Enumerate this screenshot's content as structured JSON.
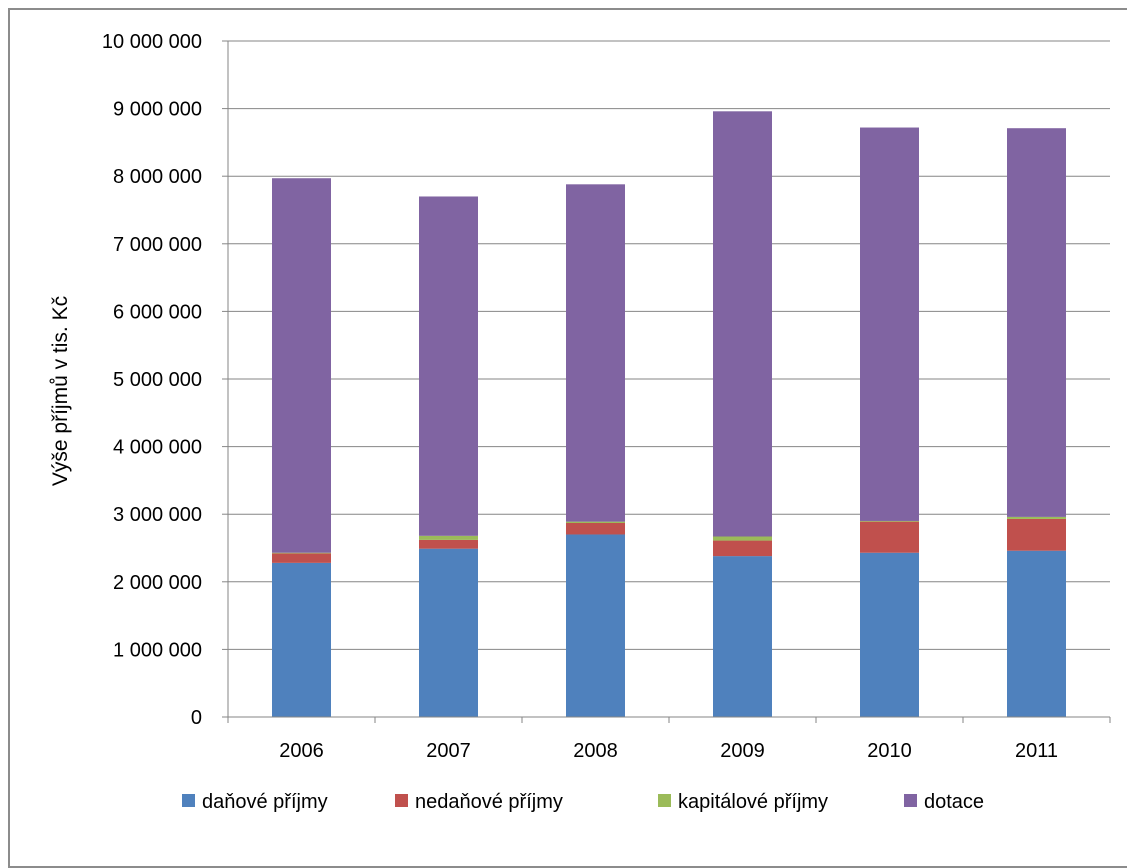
{
  "chart_data": {
    "type": "bar",
    "stacked": true,
    "categories": [
      "2006",
      "2007",
      "2008",
      "2009",
      "2010",
      "2011"
    ],
    "series": [
      {
        "name": "daňové příjmy",
        "color": "#4F81BD",
        "values": [
          2280000,
          2490000,
          2700000,
          2380000,
          2430000,
          2460000
        ]
      },
      {
        "name": "nedaňové příjmy",
        "color": "#C0504D",
        "values": [
          140000,
          130000,
          170000,
          230000,
          460000,
          470000
        ]
      },
      {
        "name": "kapitálové příjmy",
        "color": "#9BBB59",
        "values": [
          10000,
          60000,
          20000,
          60000,
          10000,
          30000
        ]
      },
      {
        "name": "dotace",
        "color": "#8064A2",
        "values": [
          5540000,
          5020000,
          4990000,
          6290000,
          5820000,
          5750000
        ]
      }
    ],
    "title": "",
    "xlabel": "",
    "ylabel": "Výše příjmů v tis. Kč",
    "ylim": [
      0,
      10000000
    ],
    "yticks": [
      0,
      1000000,
      2000000,
      3000000,
      4000000,
      5000000,
      6000000,
      7000000,
      8000000,
      9000000,
      10000000
    ],
    "ytick_labels": [
      "0",
      "1 000 000",
      "2 000 000",
      "3 000 000",
      "4 000 000",
      "5 000 000",
      "6 000 000",
      "7 000 000",
      "8 000 000",
      "9 000 000",
      "10 000 000"
    ],
    "grid": true,
    "legend_position": "bottom"
  }
}
